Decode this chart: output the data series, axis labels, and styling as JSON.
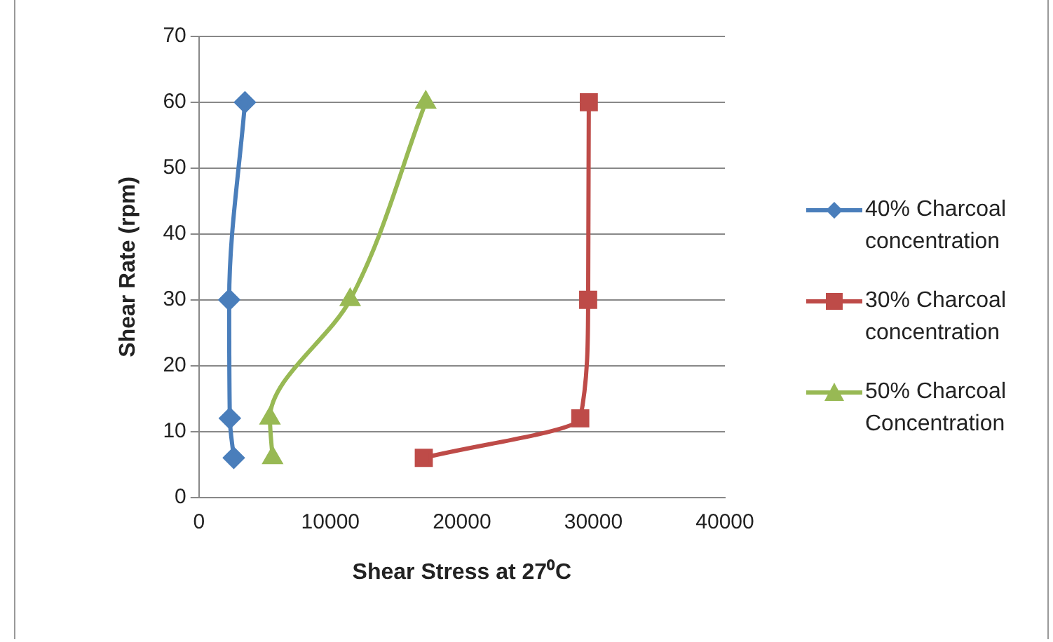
{
  "chart_data": {
    "type": "line",
    "xlabel": "Shear Stress at 27⁰C",
    "ylabel": "Shear Rate (rpm)",
    "xlim": [
      0,
      40000
    ],
    "xticks": [
      0,
      10000,
      20000,
      30000,
      40000
    ],
    "ylim": [
      0,
      70
    ],
    "yticks": [
      0,
      10,
      20,
      30,
      40,
      50,
      60,
      70
    ],
    "grid": "y",
    "legend": "right",
    "line_style": "solid",
    "series": [
      {
        "name": "40% Charcoal concentration",
        "color": "#4a7ebb",
        "marker": "diamond",
        "x": [
          2650,
          2350,
          2300,
          3500
        ],
        "values": [
          6,
          12,
          30,
          60
        ]
      },
      {
        "name": "30% Charcoal concentration",
        "color": "#be4b48",
        "marker": "square",
        "x": [
          17100,
          29000,
          29600,
          29650
        ],
        "values": [
          6,
          12,
          30,
          60
        ]
      },
      {
        "name": "50% Charcoal Concentration",
        "color": "#98b954",
        "marker": "triangle",
        "x": [
          5600,
          5400,
          11500,
          17250
        ],
        "values": [
          6,
          12,
          30,
          60
        ]
      }
    ]
  }
}
